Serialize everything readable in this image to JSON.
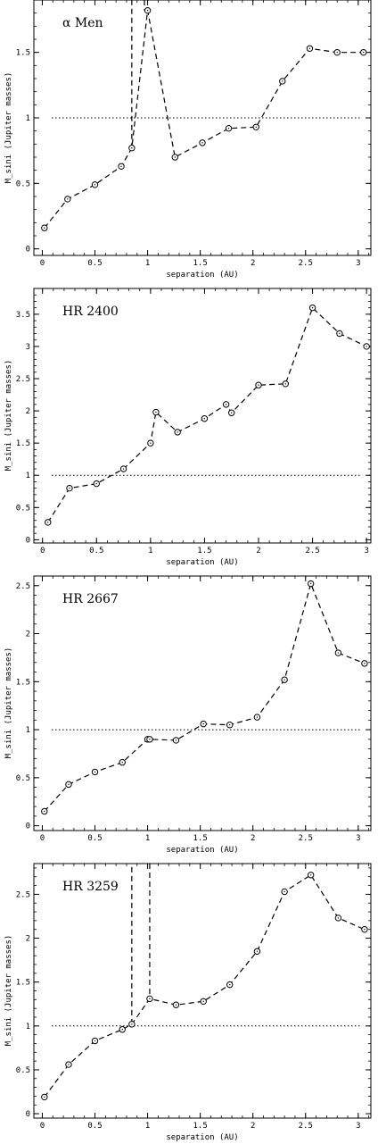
{
  "figure": {
    "caption": ""
  },
  "chart_data": [
    {
      "type": "line",
      "title": "α Men",
      "xlabel": "separation (AU)",
      "ylabel": "M_sini (Jupiter masses)",
      "xlim": [
        -0.08,
        3.12
      ],
      "ylim": [
        -0.05,
        1.9
      ],
      "xticks": [
        0,
        0.5,
        1,
        1.5,
        2,
        2.5,
        3
      ],
      "xtick_labels": [
        "0",
        "0.5",
        "1",
        "1.5",
        "2",
        "2.5",
        "3"
      ],
      "yticks": [
        0,
        0.5,
        1,
        1.5
      ],
      "ytick_labels": [
        "0",
        "0.5",
        "1",
        "1.5"
      ],
      "reference_line": 1,
      "grid": false,
      "series": [
        {
          "x": [
            0.02,
            0.24,
            0.5,
            0.75,
            0.85,
            1.0,
            1.26,
            1.52,
            1.77,
            2.03,
            2.28,
            2.54,
            2.8,
            3.05
          ],
          "y": [
            0.16,
            0.38,
            0.49,
            0.63,
            0.77,
            1.82,
            0.7,
            0.81,
            0.92,
            0.93,
            1.28,
            1.53,
            1.5,
            1.5
          ]
        }
      ],
      "divergence_segments": [
        {
          "x": [
            0.85,
            0.85
          ],
          "y": [
            0.77,
            1.9
          ]
        },
        {
          "x": [
            0.97,
            0.97
          ],
          "y": [
            1.9,
            1.82
          ]
        }
      ]
    },
    {
      "type": "line",
      "title": "HR  2400",
      "xlabel": "separation (AU)",
      "ylabel": "M_sini (Jupiter masses)",
      "xlim": [
        -0.08,
        3.04
      ],
      "ylim": [
        -0.05,
        3.9
      ],
      "xticks": [
        0,
        0.5,
        1,
        1.5,
        2,
        2.5,
        3
      ],
      "xtick_labels": [
        "0",
        "0.5",
        "1",
        "1.5",
        "2",
        "2.5",
        "3"
      ],
      "yticks": [
        0,
        0.5,
        1,
        1.5,
        2,
        2.5,
        3,
        3.5
      ],
      "ytick_labels": [
        "0",
        "0.5",
        "1",
        "1.5",
        "2",
        "2.5",
        "3",
        "3.5"
      ],
      "reference_line": 1,
      "grid": false,
      "series": [
        {
          "x": [
            0.05,
            0.25,
            0.5,
            0.75,
            1.0,
            1.05,
            1.25,
            1.5,
            1.7,
            1.75,
            2.0,
            2.25,
            2.5,
            2.75,
            3.0
          ],
          "y": [
            0.27,
            0.8,
            0.87,
            1.1,
            1.5,
            1.98,
            1.67,
            1.88,
            2.1,
            1.97,
            2.4,
            2.42,
            3.6,
            3.2,
            3.0
          ]
        }
      ]
    },
    {
      "type": "line",
      "title": "HR  2667",
      "xlabel": "separation (AU)",
      "ylabel": "M_sini (Jupiter masses)",
      "xlim": [
        -0.08,
        3.12
      ],
      "ylim": [
        -0.05,
        2.6
      ],
      "xticks": [
        0,
        0.5,
        1,
        1.5,
        2,
        2.5,
        3
      ],
      "xtick_labels": [
        "0",
        "0.5",
        "1",
        "1.5",
        "2",
        "2.5",
        "3"
      ],
      "yticks": [
        0,
        0.5,
        1,
        1.5,
        2,
        2.5
      ],
      "ytick_labels": [
        "0",
        "0.5",
        "1",
        "1.5",
        "2",
        "2.5"
      ],
      "reference_line": 1,
      "grid": false,
      "series": [
        {
          "x": [
            0.02,
            0.25,
            0.5,
            0.76,
            1.0,
            1.02,
            1.27,
            1.53,
            1.78,
            2.04,
            2.3,
            2.55,
            2.81,
            3.06
          ],
          "y": [
            0.15,
            0.43,
            0.56,
            0.66,
            0.9,
            0.9,
            0.89,
            1.06,
            1.05,
            1.13,
            1.52,
            2.52,
            1.8,
            1.69
          ]
        }
      ]
    },
    {
      "type": "line",
      "title": "HR  3259",
      "xlabel": "separation (AU)",
      "ylabel": "M_sini (Jupiter masses)",
      "xlim": [
        -0.08,
        3.12
      ],
      "ylim": [
        -0.05,
        2.85
      ],
      "xticks": [
        0,
        0.5,
        1,
        1.5,
        2,
        2.5,
        3
      ],
      "xtick_labels": [
        "0",
        "0.5",
        "1",
        "1.5",
        "2",
        "2.5",
        "3"
      ],
      "yticks": [
        0,
        0.5,
        1,
        1.5,
        2,
        2.5
      ],
      "ytick_labels": [
        "0",
        "0.5",
        "1",
        "1.5",
        "2",
        "2.5"
      ],
      "reference_line": 1,
      "grid": false,
      "series": [
        {
          "x": [
            0.02,
            0.25,
            0.5,
            0.76,
            0.85,
            1.02,
            1.27,
            1.53,
            1.78,
            2.04,
            2.3,
            2.55,
            2.81,
            3.06
          ],
          "y": [
            0.19,
            0.56,
            0.83,
            0.96,
            1.02,
            1.31,
            1.24,
            1.28,
            1.47,
            1.85,
            2.53,
            2.72,
            2.23,
            2.1
          ]
        }
      ],
      "divergence_segments": [
        {
          "x": [
            0.85,
            0.85
          ],
          "y": [
            1.02,
            2.85
          ]
        },
        {
          "x": [
            1.02,
            1.02
          ],
          "y": [
            2.85,
            1.31
          ]
        }
      ]
    }
  ]
}
